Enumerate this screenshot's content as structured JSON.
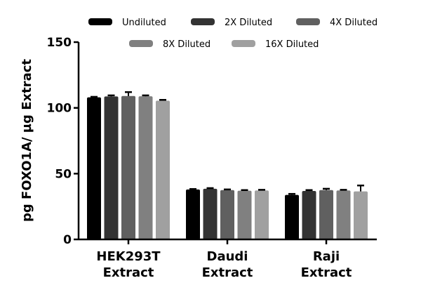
{
  "chart_data": {
    "type": "bar",
    "title": "",
    "xlabel": "",
    "ylabel": "pg FOXO1A/ µg Extract",
    "ylim": [
      0,
      150
    ],
    "yticks": [
      0,
      50,
      100,
      150
    ],
    "grid": false,
    "legend_position": "top",
    "categories": [
      "HEK293T\nExtract",
      "Daudi\nExtract",
      "Raji\nExtract"
    ],
    "category_lines": [
      [
        "HEK293T",
        "Extract"
      ],
      [
        "Daudi",
        "Extract"
      ],
      [
        "Raji",
        "Extract"
      ]
    ],
    "series": [
      {
        "name": "Undiluted",
        "color": "#000000",
        "values": [
          108.0,
          38.0,
          33.8
        ],
        "errors": [
          0.4,
          0.3,
          0.8
        ]
      },
      {
        "name": "2X Diluted",
        "color": "#333333",
        "values": [
          108.7,
          38.5,
          36.8
        ],
        "errors": [
          0.8,
          0.5,
          0.7
        ]
      },
      {
        "name": "4X Diluted",
        "color": "#606060",
        "values": [
          109.0,
          37.5,
          37.5
        ],
        "errors": [
          3.0,
          0.5,
          1.0
        ]
      },
      {
        "name": "8X Diluted",
        "color": "#808080",
        "values": [
          108.8,
          37.0,
          37.2
        ],
        "errors": [
          0.7,
          0.5,
          0.5
        ]
      },
      {
        "name": "16X Diluted",
        "color": "#a0a0a0",
        "values": [
          105.5,
          37.2,
          36.5
        ],
        "errors": [
          0.6,
          0.5,
          4.5
        ]
      }
    ]
  }
}
